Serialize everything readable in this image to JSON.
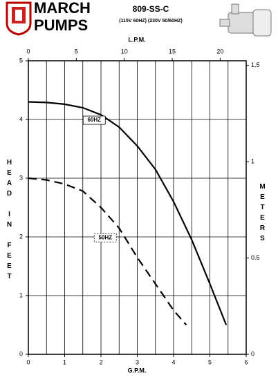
{
  "header": {
    "brand_top": "MARCH",
    "brand_bottom": "PUMPS"
  },
  "chart_data": {
    "type": "line",
    "title": "809-SS-C",
    "subtitle": "(115V 60HZ) (230V 50/60HZ)",
    "xlabel": "G.P.M.",
    "ylabel": "HEAD IN FEET",
    "x2label": "L.P.M.",
    "y2label": "METERS",
    "xlim": [
      0,
      6
    ],
    "xticks": [
      0,
      1,
      2,
      3,
      4,
      5,
      6
    ],
    "xminorticks": [
      0.5,
      1.5,
      2.5,
      3.5,
      4.5,
      5.5
    ],
    "ylim": [
      0,
      5
    ],
    "yticks": [
      0,
      1,
      2,
      3,
      4,
      5
    ],
    "x2lim": [
      0,
      22.71
    ],
    "x2ticks": [
      0,
      5,
      10,
      15,
      20
    ],
    "y2lim": [
      0,
      1.524
    ],
    "y2ticks": [
      0,
      0.5,
      1,
      1.5
    ],
    "grid": true,
    "series": [
      {
        "name": "60HZ",
        "color": "#000000",
        "dash": false,
        "x": [
          0,
          0.5,
          1,
          1.5,
          2,
          2.5,
          3,
          3.5,
          4,
          4.5,
          5,
          5.45
        ],
        "values": [
          4.3,
          4.29,
          4.26,
          4.2,
          4.08,
          3.87,
          3.55,
          3.15,
          2.6,
          1.95,
          1.2,
          0.5
        ]
      },
      {
        "name": "50HZ",
        "color": "#000000",
        "dash": true,
        "x": [
          0,
          0.5,
          1,
          1.5,
          2,
          2.5,
          3,
          3.5,
          4,
          4.35
        ],
        "values": [
          3.0,
          2.97,
          2.9,
          2.78,
          2.5,
          2.15,
          1.65,
          1.2,
          0.75,
          0.5
        ]
      }
    ]
  }
}
